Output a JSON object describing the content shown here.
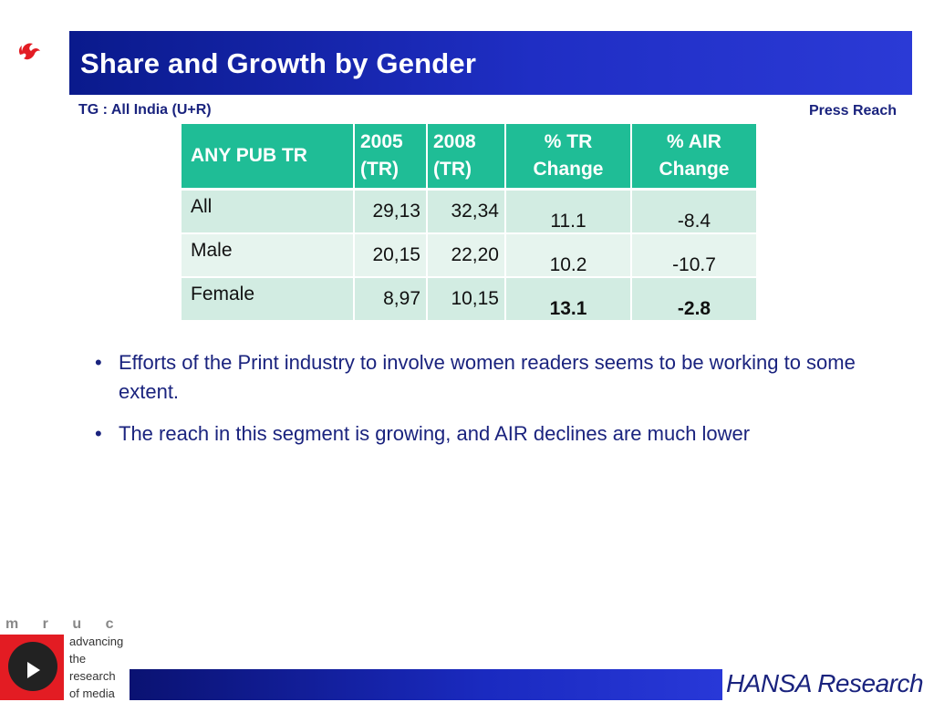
{
  "title": "Share and Growth by Gender",
  "tg_label": "TG : All India (U+R)",
  "press_label": "Press Reach",
  "table": {
    "headers": [
      "ANY PUB TR",
      "2005 (TR)",
      "2008 (TR)",
      "% TR Change",
      "% AIR Change"
    ],
    "rows": [
      {
        "category": "All",
        "y2005": "29,13",
        "y2008": "32,34",
        "tr_change": "11.1",
        "air_change": "-8.4"
      },
      {
        "category": "Male",
        "y2005": "20,15",
        "y2008": "22,20",
        "tr_change": "10.2",
        "air_change": "-10.7"
      },
      {
        "category": "Female",
        "y2005": "8,97",
        "y2008": "10,15",
        "tr_change": "13.1",
        "air_change": "-2.8"
      }
    ],
    "header_color": "#1fbd96"
  },
  "bullets": [
    "Efforts of the Print industry to involve women readers seems to be working to some extent.",
    "The reach in this segment is growing, and AIR declines are much lower"
  ],
  "footer": {
    "mruc_letters": "m r u c",
    "tagline": [
      "advancing",
      "the",
      "research",
      "of media"
    ],
    "hansa_logo": "HANSA Research"
  },
  "colors": {
    "title_bar": "#1f2ec4",
    "text_navy": "#1a237e",
    "mruc_red": "#e31c23"
  }
}
